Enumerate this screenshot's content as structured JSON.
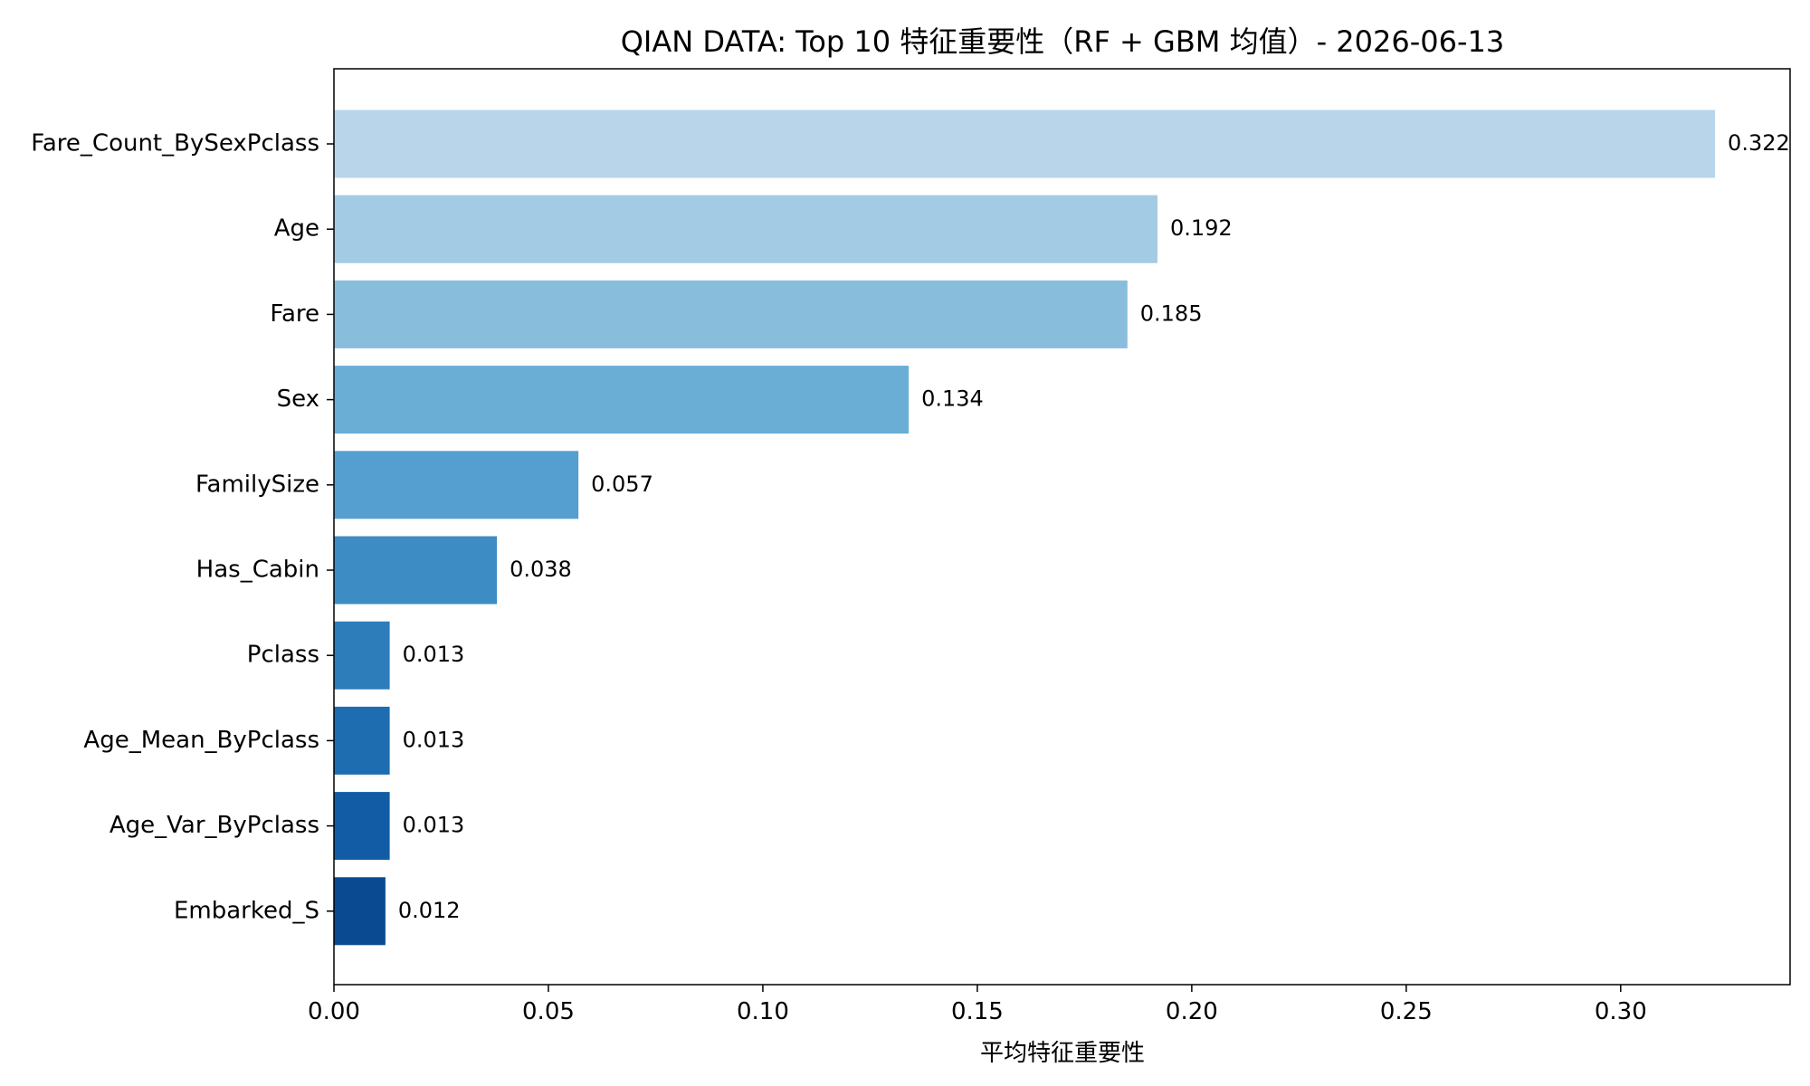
{
  "chart_data": {
    "type": "bar",
    "orientation": "horizontal",
    "title": "QIAN DATA: Top 10 特征重要性（RF + GBM 均值）- 2026-06-13",
    "xlabel": "平均特征重要性",
    "ylabel": "",
    "categories": [
      "Fare_Count_BySexPclass",
      "Age",
      "Fare",
      "Sex",
      "FamilySize",
      "Has_Cabin",
      "Pclass",
      "Age_Mean_ByPclass",
      "Age_Var_ByPclass",
      "Embarked_S"
    ],
    "values": [
      0.322,
      0.192,
      0.185,
      0.134,
      0.057,
      0.038,
      0.013,
      0.013,
      0.013,
      0.012
    ],
    "value_labels": [
      "0.322",
      "0.192",
      "0.185",
      "0.134",
      "0.057",
      "0.038",
      "0.013",
      "0.013",
      "0.013",
      "0.012"
    ],
    "colors": [
      "#b8d5ea",
      "#a3cbe3",
      "#88bddc",
      "#6aaed6",
      "#549fcf",
      "#3d8dc4",
      "#2d7dbb",
      "#1f6db1",
      "#115ca5",
      "#0a4a90"
    ],
    "xlim": [
      0,
      0.3395
    ],
    "xticks": [
      0,
      0.05,
      0.1,
      0.15,
      0.2,
      0.25,
      0.3
    ],
    "xtick_labels": [
      "0.00",
      "0.05",
      "0.10",
      "0.15",
      "0.20",
      "0.25",
      "0.30"
    ],
    "grid": false,
    "legend": "none"
  }
}
